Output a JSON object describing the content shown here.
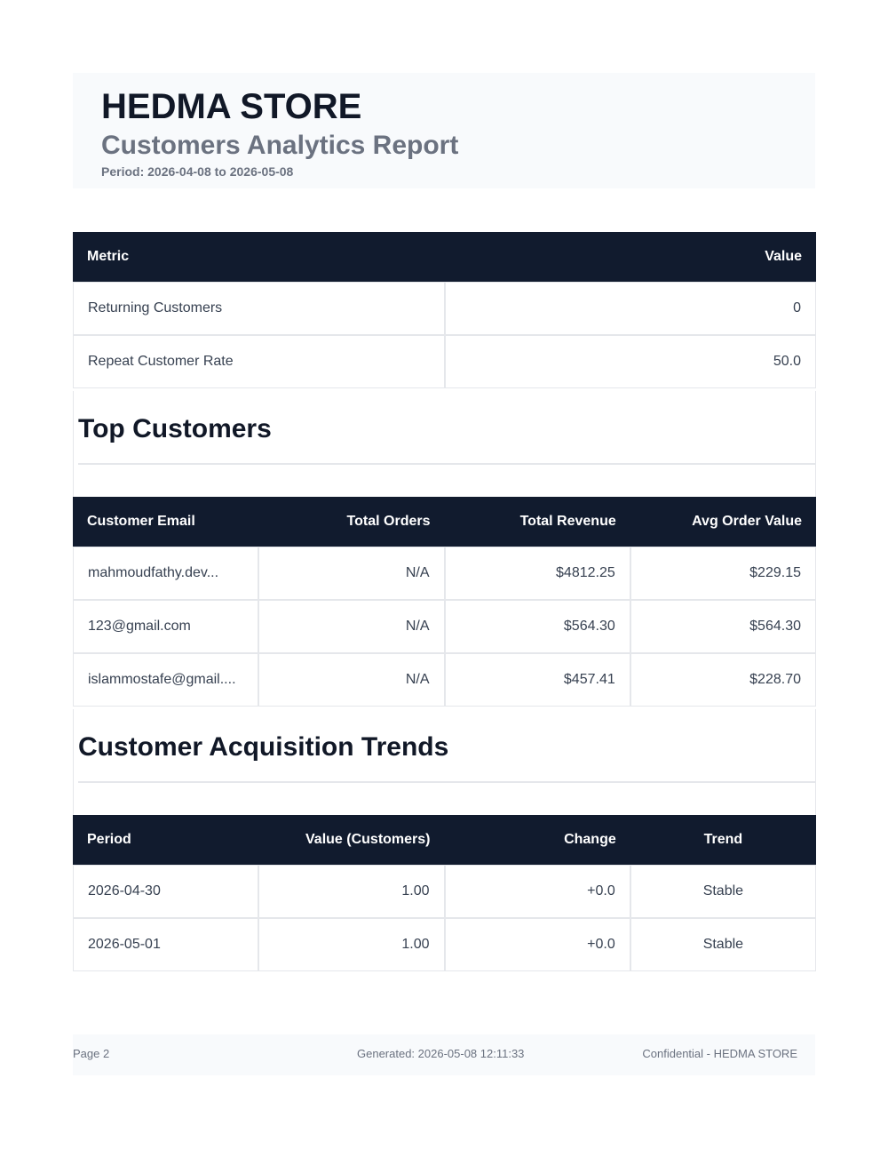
{
  "header": {
    "store_name": "HEDMA STORE",
    "report_title": "Customers Analytics Report",
    "period": "Period: 2026-04-08 to 2026-05-08"
  },
  "metrics_table": {
    "columns": [
      "Metric",
      "Value"
    ],
    "rows": [
      [
        "Returning Customers",
        "0"
      ],
      [
        "Repeat Customer Rate",
        "50.0"
      ]
    ]
  },
  "top_customers": {
    "heading": "Top Customers",
    "columns": [
      "Customer Email",
      "Total Orders",
      "Total Revenue",
      "Avg Order Value"
    ],
    "rows": [
      [
        "mahmoudfathy.dev...",
        "N/A",
        "$4812.25",
        "$229.15"
      ],
      [
        "123@gmail.com",
        "N/A",
        "$564.30",
        "$564.30"
      ],
      [
        "islammostafe@gmail....",
        "N/A",
        "$457.41",
        "$228.70"
      ]
    ]
  },
  "acquisition_trends": {
    "heading": "Customer Acquisition Trends",
    "columns": [
      "Period",
      "Value (Customers)",
      "Change",
      "Trend"
    ],
    "rows": [
      [
        "2026-04-30",
        "1.00",
        "+0.0",
        "Stable"
      ],
      [
        "2026-05-01",
        "1.00",
        "+0.0",
        "Stable"
      ]
    ]
  },
  "footer": {
    "page": "Page 2",
    "generated": "Generated: 2026-05-08 12:11:33",
    "confidential": "Confidential - HEDMA STORE"
  },
  "colors": {
    "table_header_bg": "#111b2e",
    "header_box_bg": "#f8fafc"
  }
}
